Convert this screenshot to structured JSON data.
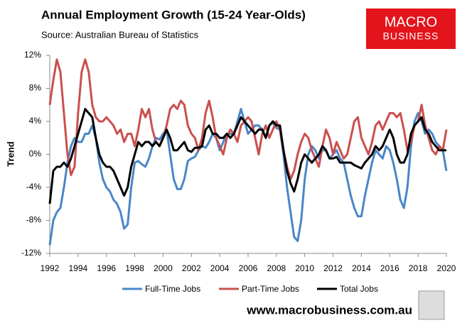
{
  "chart_data": {
    "type": "line",
    "title": "Annual Employment Growth (15-24 Year-Olds)",
    "subtitle": "Source: Australian Bureau of Statistics",
    "y_label": "Trend",
    "logo": [
      "MACRO",
      "BUSINESS"
    ],
    "footer": "www.macrobusiness.com.au",
    "x": [
      1992,
      1992.25,
      1992.5,
      1992.75,
      1993,
      1993.25,
      1993.5,
      1993.75,
      1994,
      1994.25,
      1994.5,
      1994.75,
      1995,
      1995.25,
      1995.5,
      1995.75,
      1996,
      1996.25,
      1996.5,
      1996.75,
      1997,
      1997.25,
      1997.5,
      1997.75,
      1998,
      1998.25,
      1998.5,
      1998.75,
      1999,
      1999.25,
      1999.5,
      1999.75,
      2000,
      2000.25,
      2000.5,
      2000.75,
      2001,
      2001.25,
      2001.5,
      2001.75,
      2002,
      2002.25,
      2002.5,
      2002.75,
      2003,
      2003.25,
      2003.5,
      2003.75,
      2004,
      2004.25,
      2004.5,
      2004.75,
      2005,
      2005.25,
      2005.5,
      2005.75,
      2006,
      2006.25,
      2006.5,
      2006.75,
      2007,
      2007.25,
      2007.5,
      2007.75,
      2008,
      2008.25,
      2008.5,
      2008.75,
      2009,
      2009.25,
      2009.5,
      2009.75,
      2010,
      2010.25,
      2010.5,
      2010.75,
      2011,
      2011.25,
      2011.5,
      2011.75,
      2012,
      2012.25,
      2012.5,
      2012.75,
      2013,
      2013.25,
      2013.5,
      2013.75,
      2014,
      2014.25,
      2014.5,
      2014.75,
      2015,
      2015.25,
      2015.5,
      2015.75,
      2016,
      2016.25,
      2016.5,
      2016.75,
      2017,
      2017.25,
      2017.5,
      2017.75,
      2018,
      2018.25,
      2018.5,
      2018.75,
      2019,
      2019.25,
      2019.5,
      2019.75,
      2020
    ],
    "series": [
      {
        "name": "Full-Time Jobs",
        "color": "#4a86c8",
        "width": 3,
        "values": [
          -11,
          -8,
          -7,
          -6.5,
          -4,
          -1,
          1,
          2,
          1.5,
          1.5,
          2.5,
          2.5,
          3.5,
          2,
          -1,
          -3,
          -4,
          -4.5,
          -5.5,
          -6,
          -7,
          -9,
          -8.5,
          -4,
          -1,
          -0.8,
          -1.2,
          -1.5,
          -0.5,
          1,
          2,
          1.8,
          2.5,
          3,
          0,
          -3,
          -4.2,
          -4.2,
          -3,
          -0.8,
          -0.5,
          -0.3,
          0.5,
          1,
          0.8,
          1.5,
          2.5,
          2,
          0.5,
          1.5,
          2.5,
          2.5,
          2.5,
          4,
          5.5,
          4,
          2.5,
          3,
          3.5,
          3.5,
          3,
          2,
          3.5,
          3.8,
          3.2,
          3,
          0,
          -4,
          -7,
          -10,
          -10.5,
          -8,
          -3,
          0,
          1,
          0.5,
          -0.5,
          0.5,
          0.5,
          -0.5,
          0,
          0.5,
          -0.5,
          -1,
          -3,
          -5,
          -6.5,
          -7.5,
          -7.5,
          -5,
          -3,
          -1,
          0.5,
          0,
          -0.5,
          1,
          0.5,
          -1,
          -3,
          -5.5,
          -6.5,
          -4,
          1,
          4,
          5,
          4,
          2.5,
          3,
          2.5,
          1.5,
          1,
          0.5,
          -2
        ]
      },
      {
        "name": "Part-Time Jobs",
        "color": "#c9504d",
        "width": 3,
        "values": [
          6,
          9,
          11.5,
          10,
          5,
          0,
          -2.5,
          -1.5,
          5,
          10,
          11.5,
          10,
          6,
          4.5,
          4,
          4,
          4.5,
          4,
          3.5,
          2.5,
          3,
          1.5,
          2.5,
          2.5,
          1,
          3,
          5.5,
          4.5,
          5.5,
          3,
          1.5,
          1,
          2,
          3.5,
          5.5,
          6,
          5.5,
          6.5,
          6,
          3.5,
          2.5,
          2,
          0.5,
          2,
          5,
          6.5,
          4.5,
          2,
          1,
          0,
          2,
          3,
          2.5,
          1.5,
          3.5,
          4,
          4.5,
          4,
          2,
          0,
          2.5,
          3.5,
          2,
          3,
          4,
          3,
          0.5,
          -1.5,
          -3,
          -2,
          0,
          1.5,
          2.5,
          2,
          0.5,
          -0.5,
          -1.5,
          1,
          3,
          2,
          0,
          1.5,
          0.5,
          -0.5,
          0,
          2,
          4,
          4.5,
          2,
          1,
          0,
          1.5,
          3.5,
          4,
          3,
          4,
          5,
          5,
          4.5,
          5,
          3,
          0.5,
          1.5,
          3.5,
          4,
          6,
          3.5,
          2,
          0.5,
          0,
          1,
          0.5,
          3
        ]
      },
      {
        "name": "Total Jobs",
        "color": "#000000",
        "width": 3,
        "values": [
          -6,
          -2,
          -1.5,
          -1.5,
          -1,
          -1.5,
          -0.5,
          1,
          2.5,
          4,
          5.5,
          5,
          4.5,
          2,
          0,
          -1,
          -1.5,
          -1.5,
          -2,
          -3,
          -4,
          -5,
          -4,
          -1.5,
          0,
          1.5,
          1,
          1.5,
          1.5,
          1,
          1.5,
          1,
          2,
          3,
          2,
          0.5,
          0.5,
          1,
          1.5,
          0.5,
          0.3,
          0.8,
          0.8,
          1,
          3,
          3.5,
          2.5,
          2.5,
          2,
          2,
          2.5,
          2,
          2.5,
          3.5,
          4.5,
          4,
          3.5,
          3,
          2.5,
          3,
          3,
          2,
          3.5,
          4,
          3.5,
          3.5,
          0.5,
          -2,
          -3.5,
          -4.5,
          -3,
          -1,
          0,
          -0.5,
          -1,
          -0.5,
          0,
          1,
          0.5,
          -0.5,
          -0.5,
          -0.3,
          -1,
          -1,
          -1,
          -1,
          -1.3,
          -1.5,
          -1.7,
          -1,
          -0.5,
          0,
          1,
          0.5,
          1,
          2,
          3,
          2,
          0,
          -1,
          -1,
          0,
          2.5,
          3.5,
          4,
          4.5,
          3,
          2.5,
          1.5,
          1,
          0.5,
          0.5,
          0.5
        ]
      }
    ],
    "xlim": [
      1992,
      2020
    ],
    "xticks": [
      1992,
      1994,
      1996,
      1998,
      2000,
      2002,
      2004,
      2006,
      2008,
      2010,
      2012,
      2014,
      2016,
      2018,
      2020
    ],
    "ylim": [
      -12,
      12
    ],
    "yticks": [
      {
        "value": -12,
        "label": "-12%"
      },
      {
        "value": -8,
        "label": "-8%"
      },
      {
        "value": -4,
        "label": "-4%"
      },
      {
        "value": 0,
        "label": "0%"
      },
      {
        "value": 4,
        "label": "4%"
      },
      {
        "value": 8,
        "label": "8%"
      },
      {
        "value": 12,
        "label": "12%"
      }
    ],
    "grid": false,
    "legend": "bottom"
  }
}
